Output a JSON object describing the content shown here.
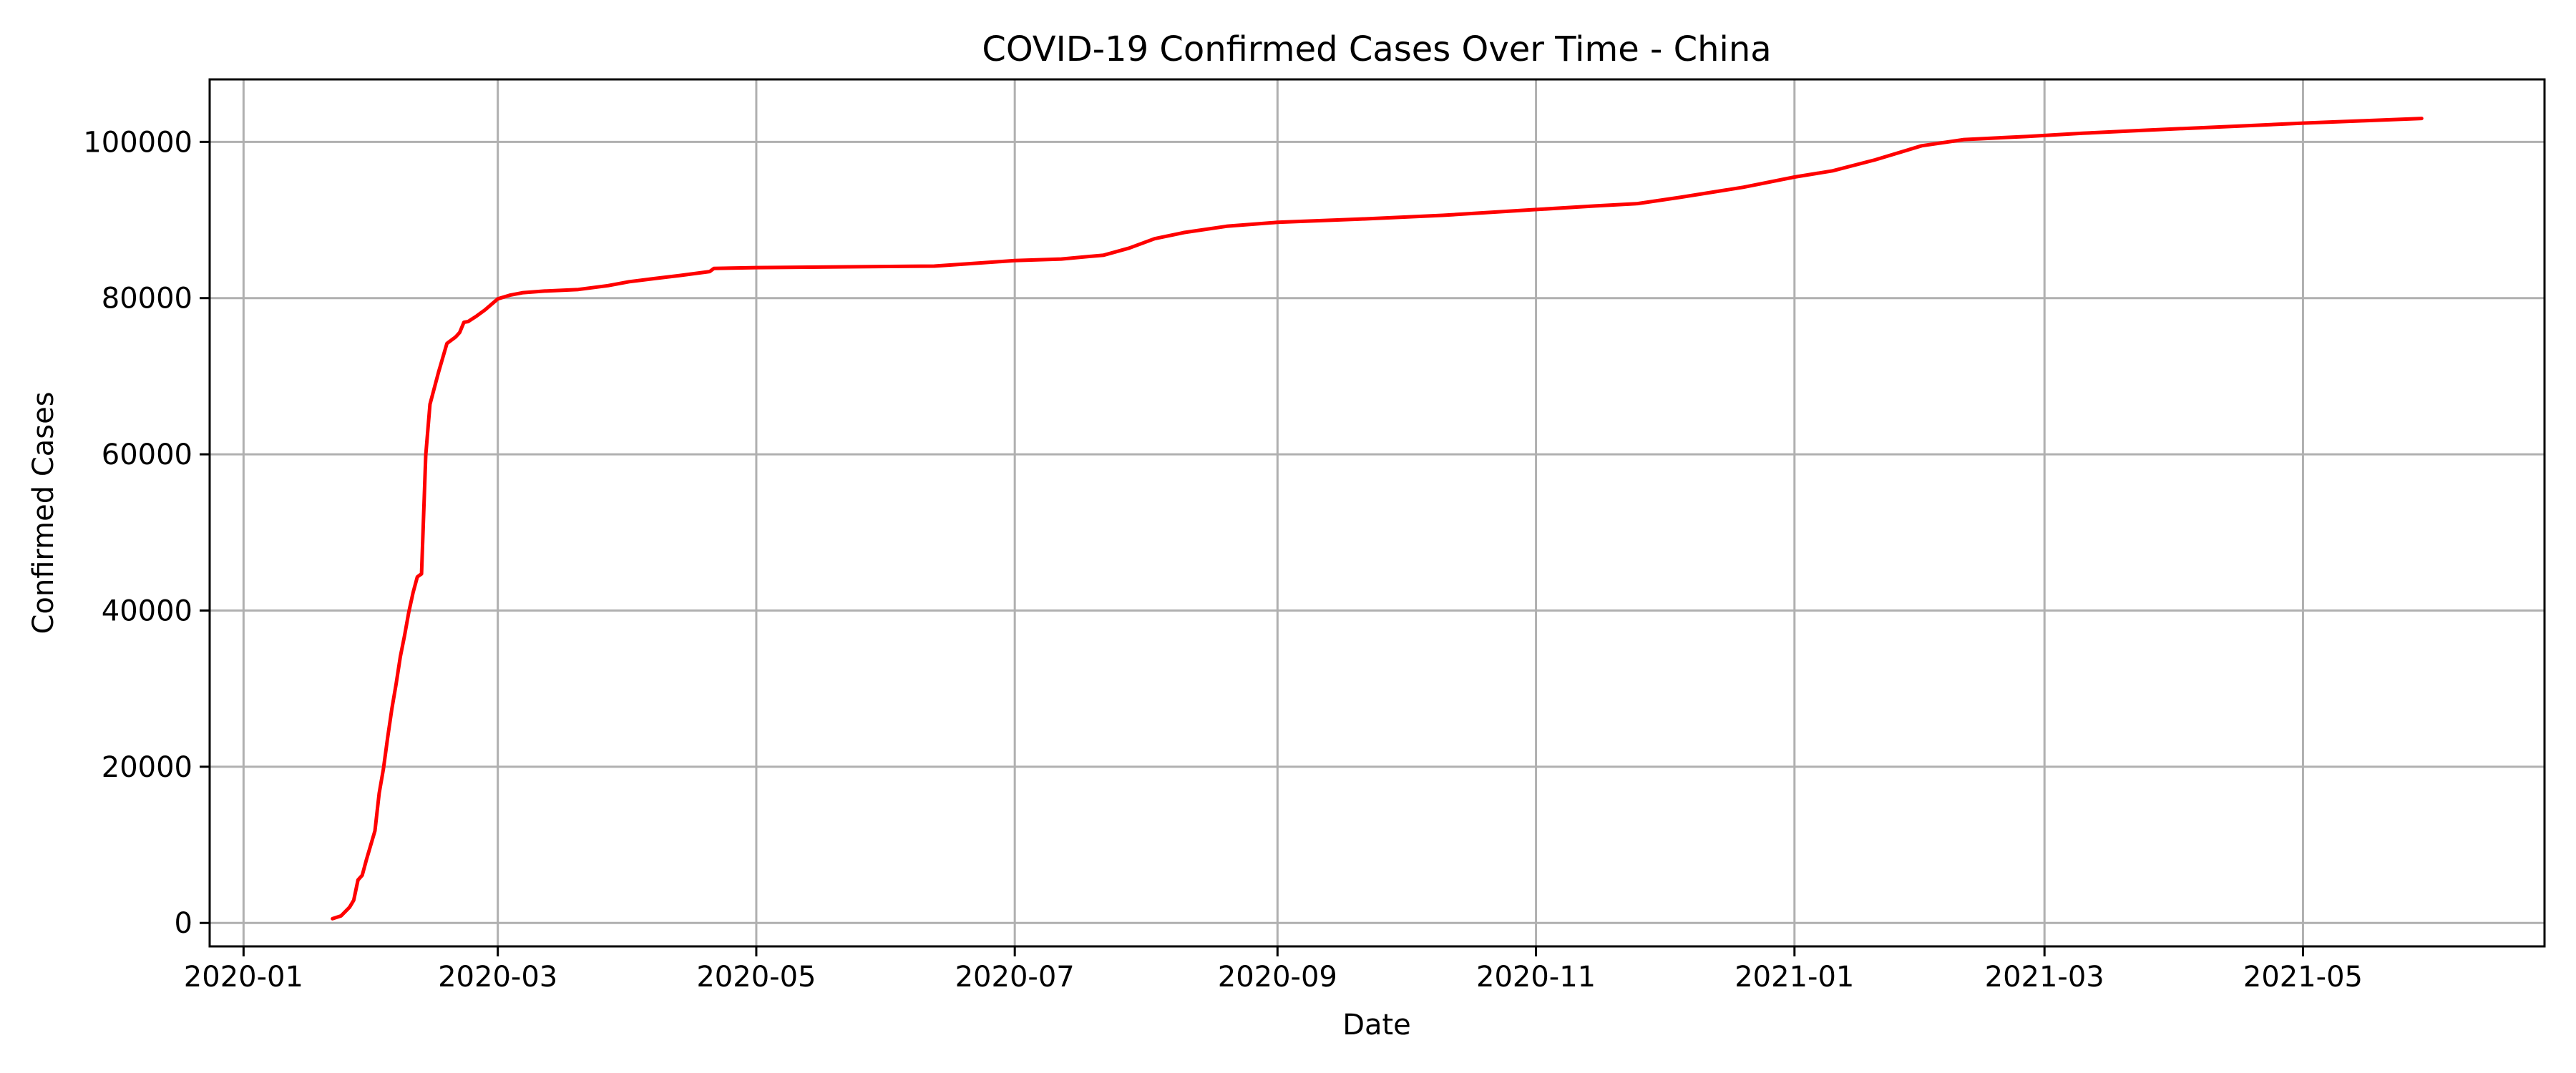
{
  "chart_data": {
    "type": "line",
    "title": "COVID-19 Confirmed Cases Over Time - China",
    "xlabel": "Date",
    "ylabel": "Confirmed Cases",
    "grid": true,
    "legend": "none",
    "xlim": [
      "2019-12-24",
      "2021-06-27"
    ],
    "ylim": [
      -3000,
      108000
    ],
    "x_ticks": [
      {
        "date": "2020-01-01",
        "label": "2020-01"
      },
      {
        "date": "2020-03-01",
        "label": "2020-03"
      },
      {
        "date": "2020-05-01",
        "label": "2020-05"
      },
      {
        "date": "2020-07-01",
        "label": "2020-07"
      },
      {
        "date": "2020-09-01",
        "label": "2020-09"
      },
      {
        "date": "2020-11-01",
        "label": "2020-11"
      },
      {
        "date": "2021-01-01",
        "label": "2021-01"
      },
      {
        "date": "2021-03-01",
        "label": "2021-03"
      },
      {
        "date": "2021-05-01",
        "label": "2021-05"
      }
    ],
    "y_ticks": [
      {
        "value": 0,
        "label": "0"
      },
      {
        "value": 20000,
        "label": "20000"
      },
      {
        "value": 40000,
        "label": "40000"
      },
      {
        "value": 60000,
        "label": "60000"
      },
      {
        "value": 80000,
        "label": "80000"
      },
      {
        "value": 100000,
        "label": "100000"
      }
    ],
    "series": [
      {
        "color": "#ff0000",
        "points": [
          [
            "2020-01-22",
            548
          ],
          [
            "2020-01-24",
            900
          ],
          [
            "2020-01-26",
            2000
          ],
          [
            "2020-01-27",
            2900
          ],
          [
            "2020-01-28",
            5500
          ],
          [
            "2020-01-29",
            6100
          ],
          [
            "2020-01-30",
            8100
          ],
          [
            "2020-02-01",
            11800
          ],
          [
            "2020-02-02",
            16600
          ],
          [
            "2020-02-03",
            19700
          ],
          [
            "2020-02-04",
            23700
          ],
          [
            "2020-02-05",
            27400
          ],
          [
            "2020-02-06",
            30600
          ],
          [
            "2020-02-07",
            34100
          ],
          [
            "2020-02-08",
            36800
          ],
          [
            "2020-02-09",
            39800
          ],
          [
            "2020-02-10",
            42300
          ],
          [
            "2020-02-11",
            44300
          ],
          [
            "2020-02-12",
            44700
          ],
          [
            "2020-02-13",
            59900
          ],
          [
            "2020-02-14",
            66400
          ],
          [
            "2020-02-16",
            70500
          ],
          [
            "2020-02-18",
            74200
          ],
          [
            "2020-02-20",
            75000
          ],
          [
            "2020-02-21",
            75600
          ],
          [
            "2020-02-22",
            76900
          ],
          [
            "2020-02-23",
            77000
          ],
          [
            "2020-02-25",
            77700
          ],
          [
            "2020-02-27",
            78500
          ],
          [
            "2020-03-01",
            79900
          ],
          [
            "2020-03-04",
            80400
          ],
          [
            "2020-03-07",
            80700
          ],
          [
            "2020-03-12",
            80900
          ],
          [
            "2020-03-20",
            81100
          ],
          [
            "2020-03-27",
            81600
          ],
          [
            "2020-04-01",
            82100
          ],
          [
            "2020-04-07",
            82500
          ],
          [
            "2020-04-13",
            82900
          ],
          [
            "2020-04-20",
            83400
          ],
          [
            "2020-04-21",
            83800
          ],
          [
            "2020-05-01",
            83900
          ],
          [
            "2020-06-12",
            84100
          ],
          [
            "2020-06-20",
            84400
          ],
          [
            "2020-07-01",
            84800
          ],
          [
            "2020-07-12",
            85000
          ],
          [
            "2020-07-22",
            85500
          ],
          [
            "2020-07-28",
            86400
          ],
          [
            "2020-08-03",
            87600
          ],
          [
            "2020-08-10",
            88400
          ],
          [
            "2020-08-20",
            89200
          ],
          [
            "2020-09-01",
            89700
          ],
          [
            "2020-09-20",
            90100
          ],
          [
            "2020-10-10",
            90600
          ],
          [
            "2020-10-31",
            91300
          ],
          [
            "2020-11-15",
            91800
          ],
          [
            "2020-11-25",
            92100
          ],
          [
            "2020-12-05",
            92900
          ],
          [
            "2020-12-20",
            94200
          ],
          [
            "2021-01-01",
            95500
          ],
          [
            "2021-01-10",
            96300
          ],
          [
            "2021-01-20",
            97700
          ],
          [
            "2021-01-31",
            99500
          ],
          [
            "2021-02-10",
            100300
          ],
          [
            "2021-02-25",
            100700
          ],
          [
            "2021-03-10",
            101100
          ],
          [
            "2021-03-25",
            101500
          ],
          [
            "2021-04-15",
            102000
          ],
          [
            "2021-05-01",
            102400
          ],
          [
            "2021-05-15",
            102700
          ],
          [
            "2021-05-29",
            103000
          ]
        ]
      }
    ]
  }
}
